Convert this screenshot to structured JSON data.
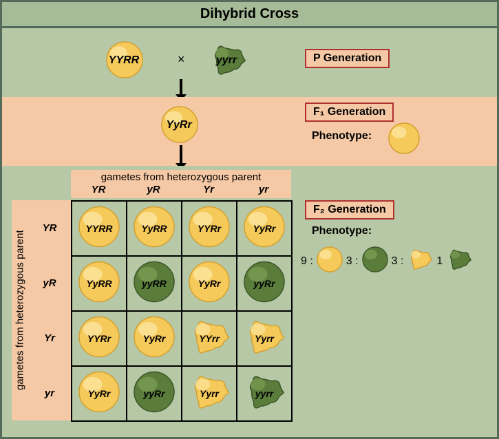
{
  "title": "Dihybrid Cross",
  "p_generation": {
    "label": "P Generation",
    "parent1": {
      "genotype": "YYRR",
      "color": "yellow",
      "shape": "round"
    },
    "parent2": {
      "genotype": "yyrr",
      "color": "green",
      "shape": "wrinkled"
    },
    "cross_symbol": "×"
  },
  "f1_generation": {
    "label": "F₁ Generation",
    "genotype": "YyRr",
    "phenotype_label": "Phenotype:",
    "phenotype": {
      "color": "yellow",
      "shape": "round"
    }
  },
  "f2_generation": {
    "label": "F₂ Generation",
    "gamete_header": "gametes from heterozygous parent",
    "gamete_side_header": "gametes from heterozygous parent",
    "col_gametes": [
      "YR",
      "yR",
      "Yr",
      "yr"
    ],
    "row_gametes": [
      "YR",
      "yR",
      "Yr",
      "yr"
    ],
    "phenotype_label": "Phenotype:",
    "ratio": [
      {
        "n": "9",
        "color": "yellow",
        "shape": "round"
      },
      {
        "n": "3",
        "color": "green",
        "shape": "round"
      },
      {
        "n": "3",
        "color": "yellow",
        "shape": "wrinkled"
      },
      {
        "n": "1",
        "color": "green",
        "shape": "wrinkled"
      }
    ],
    "cells": [
      [
        {
          "g": "YYRR",
          "color": "yellow",
          "shape": "round"
        },
        {
          "g": "YyRR",
          "color": "yellow",
          "shape": "round"
        },
        {
          "g": "YYRr",
          "color": "yellow",
          "shape": "round"
        },
        {
          "g": "YyRr",
          "color": "yellow",
          "shape": "round"
        }
      ],
      [
        {
          "g": "YyRR",
          "color": "yellow",
          "shape": "round"
        },
        {
          "g": "yyRR",
          "color": "green",
          "shape": "round"
        },
        {
          "g": "YyRr",
          "color": "yellow",
          "shape": "round"
        },
        {
          "g": "yyRr",
          "color": "green",
          "shape": "round"
        }
      ],
      [
        {
          "g": "YYRr",
          "color": "yellow",
          "shape": "round"
        },
        {
          "g": "YyRr",
          "color": "yellow",
          "shape": "round"
        },
        {
          "g": "YYrr",
          "color": "yellow",
          "shape": "wrinkled"
        },
        {
          "g": "Yyrr",
          "color": "yellow",
          "shape": "wrinkled"
        }
      ],
      [
        {
          "g": "YyRr",
          "color": "yellow",
          "shape": "round"
        },
        {
          "g": "yyRr",
          "color": "green",
          "shape": "round"
        },
        {
          "g": "Yyrr",
          "color": "yellow",
          "shape": "wrinkled"
        },
        {
          "g": "yyrr",
          "color": "green",
          "shape": "wrinkled"
        }
      ]
    ]
  },
  "colors": {
    "yellow_fill": "#f5c95a",
    "yellow_highlight": "#fde9a8",
    "yellow_stroke": "#d4a030",
    "green_fill": "#5a7d3c",
    "green_highlight": "#7ea055",
    "green_stroke": "#3d5528",
    "bg_green": "#b6c8a5",
    "bg_peach": "#f5c9a6",
    "border_dark": "#556b5a",
    "label_border": "#b03030"
  },
  "sizes": {
    "pea_large": 56,
    "pea_cell": 60,
    "pea_small": 42
  }
}
